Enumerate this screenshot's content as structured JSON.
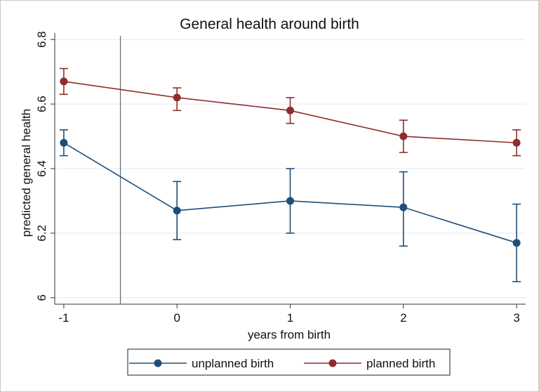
{
  "chart_data": {
    "type": "line",
    "title": "General health around birth",
    "xlabel": "years from birth",
    "ylabel": "predicted general health",
    "x": [
      -1,
      0,
      1,
      2,
      3
    ],
    "x_tick_labels": [
      "-1",
      "0",
      "1",
      "2",
      "3"
    ],
    "xlim": [
      -1.08,
      3.08
    ],
    "ylim": [
      5.98,
      6.82
    ],
    "y_ticks": [
      6,
      6.2,
      6.4,
      6.6,
      6.8
    ],
    "y_tick_labels": [
      "6",
      "6.2",
      "6.4",
      "6.6",
      "6.8"
    ],
    "grid": true,
    "reference_line_x": -0.5,
    "legend_position": "bottom",
    "series": [
      {
        "name": "unplanned birth",
        "color": "#1f4e79",
        "values": [
          6.48,
          6.27,
          6.3,
          6.28,
          6.17
        ],
        "ci_low": [
          6.44,
          6.18,
          6.2,
          6.16,
          6.05
        ],
        "ci_high": [
          6.52,
          6.36,
          6.4,
          6.39,
          6.29
        ]
      },
      {
        "name": "planned birth",
        "color": "#8f2d2d",
        "values": [
          6.67,
          6.62,
          6.58,
          6.5,
          6.48
        ],
        "ci_low": [
          6.63,
          6.58,
          6.54,
          6.45,
          6.44
        ],
        "ci_high": [
          6.71,
          6.65,
          6.62,
          6.55,
          6.52
        ]
      }
    ]
  }
}
